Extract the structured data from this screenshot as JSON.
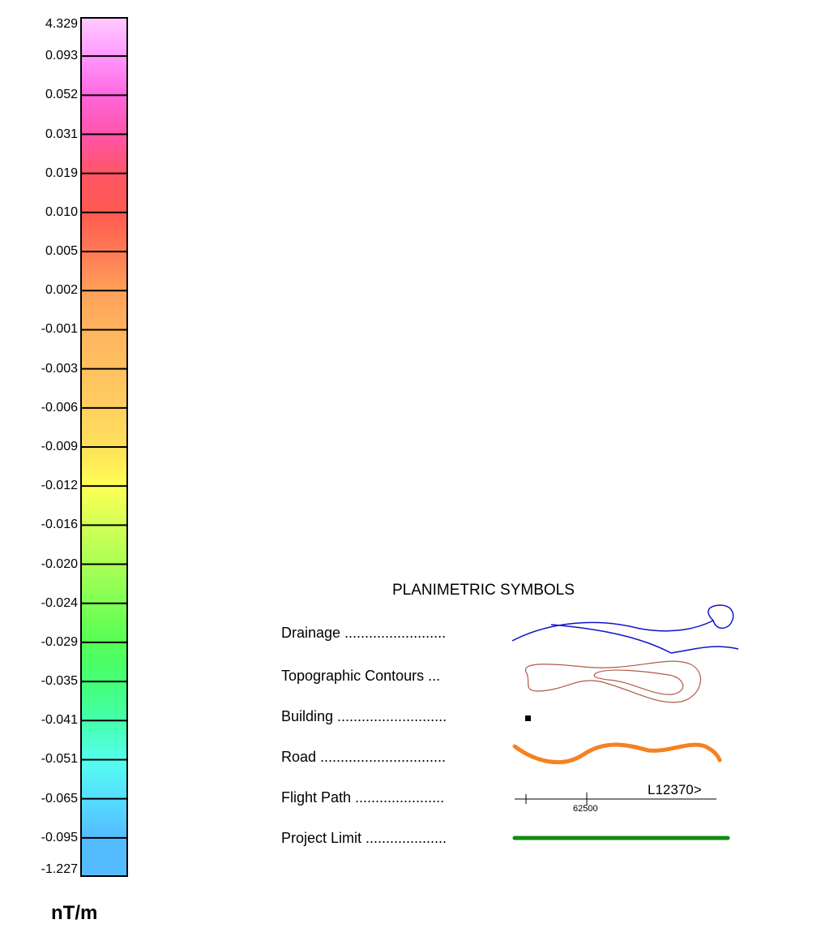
{
  "colorbar": {
    "unit": "nT/m",
    "ticks": [
      "4.329",
      "0.093",
      "0.052",
      "0.031",
      "0.019",
      "0.010",
      "0.005",
      "0.002",
      "-0.001",
      "-0.003",
      "-0.006",
      "-0.009",
      "-0.012",
      "-0.016",
      "-0.020",
      "-0.024",
      "-0.029",
      "-0.035",
      "-0.041",
      "-0.051",
      "-0.065",
      "-0.095",
      "-1.227"
    ],
    "colors": [
      "#ffccff",
      "#ff99ff",
      "#ff66dd",
      "#ff55aa",
      "#ff5566",
      "#ff5a50",
      "#ff7a55",
      "#ffa05a",
      "#ffb45e",
      "#ffc060",
      "#ffd060",
      "#ffe05a",
      "#ffff55",
      "#d2ff55",
      "#aaff55",
      "#80ff55",
      "#55ff55",
      "#44ff77",
      "#44ffaa",
      "#55ffee",
      "#55ddff",
      "#55bbff"
    ]
  },
  "legend": {
    "title": "PLANIMETRIC SYMBOLS",
    "items": [
      {
        "label": "Drainage .........................",
        "symbol": "drainage-icon",
        "color": "#1010cc"
      },
      {
        "label": "Topographic Contours ...",
        "symbol": "contour-icon",
        "color": "#b25a45"
      },
      {
        "label": "Building ...........................",
        "symbol": "building-icon",
        "color": "#000000"
      },
      {
        "label": "Road ...............................",
        "symbol": "road-icon",
        "color": "#f58220"
      },
      {
        "label": "Flight Path ......................",
        "symbol": "flight-path-icon",
        "color": "#000000"
      },
      {
        "label": "Project Limit ....................",
        "symbol": "project-limit-icon",
        "color": "#138a13"
      }
    ],
    "flight_path": {
      "line_label": "L12370>",
      "fiducial": "62500"
    }
  }
}
